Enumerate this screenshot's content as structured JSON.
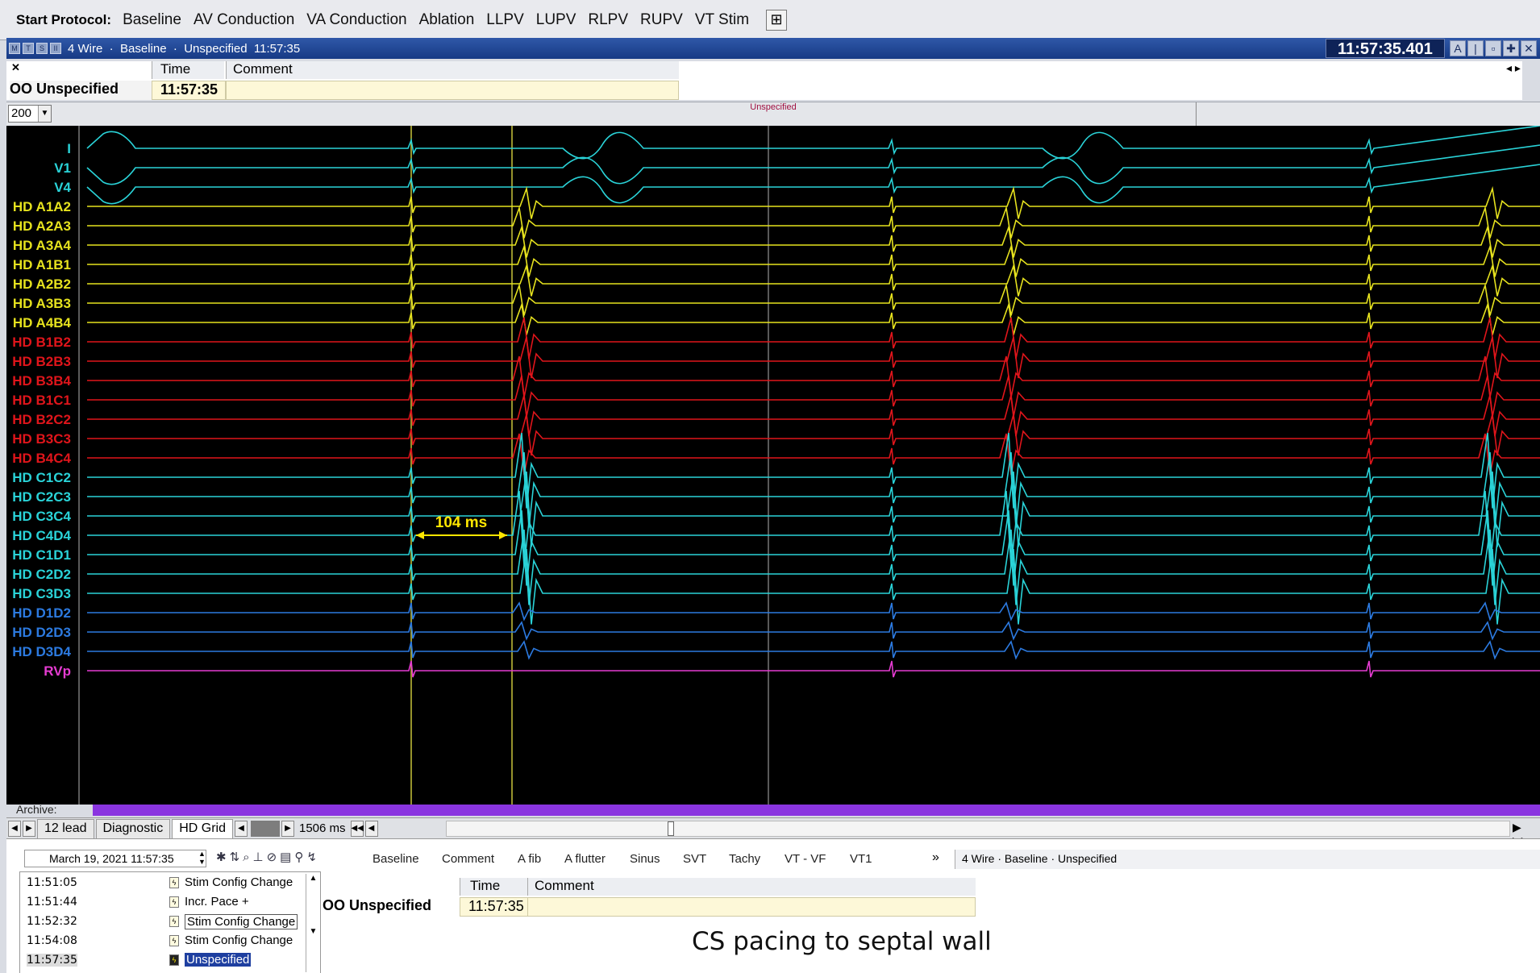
{
  "protocol_bar": {
    "label": "Start Protocol:",
    "buttons": [
      "Baseline",
      "AV Conduction",
      "VA Conduction",
      "Ablation",
      "LLPV",
      "LUPV",
      "RLPV",
      "RUPV",
      "VT Stim"
    ]
  },
  "window": {
    "title": "4 Wire  ·  Baseline  ·  Unspecified  11:57:35",
    "clock": "11:57:35.401",
    "small_buttons": [
      "M",
      "T",
      "S",
      "II"
    ]
  },
  "header_table": {
    "col_time": "Time",
    "col_comment": "Comment",
    "row_name": "OO Unspecified",
    "row_time": "11:57:35"
  },
  "sweep": {
    "value": "200",
    "event_marker": "Unspecified"
  },
  "channels": [
    {
      "label": "I",
      "color": "#2ad3d8"
    },
    {
      "label": "V1",
      "color": "#2ad3d8"
    },
    {
      "label": "V4",
      "color": "#2ad3d8"
    },
    {
      "label": "HD A1A2",
      "color": "#e6e21e"
    },
    {
      "label": "HD A2A3",
      "color": "#e6e21e"
    },
    {
      "label": "HD A3A4",
      "color": "#e6e21e"
    },
    {
      "label": "HD A1B1",
      "color": "#e6e21e"
    },
    {
      "label": "HD A2B2",
      "color": "#e6e21e"
    },
    {
      "label": "HD A3B3",
      "color": "#e6e21e"
    },
    {
      "label": "HD A4B4",
      "color": "#e6e21e"
    },
    {
      "label": "HD B1B2",
      "color": "#e0151b"
    },
    {
      "label": "HD B2B3",
      "color": "#e0151b"
    },
    {
      "label": "HD B3B4",
      "color": "#e0151b"
    },
    {
      "label": "HD B1C1",
      "color": "#e0151b"
    },
    {
      "label": "HD B2C2",
      "color": "#e0151b"
    },
    {
      "label": "HD B3C3",
      "color": "#e0151b"
    },
    {
      "label": "HD B4C4",
      "color": "#e0151b"
    },
    {
      "label": "HD C1C2",
      "color": "#2ad3d8"
    },
    {
      "label": "HD C2C3",
      "color": "#2ad3d8"
    },
    {
      "label": "HD C3C4",
      "color": "#2ad3d8"
    },
    {
      "label": "HD C4D4",
      "color": "#2ad3d8"
    },
    {
      "label": "HD C1D1",
      "color": "#2ad3d8"
    },
    {
      "label": "HD C2D2",
      "color": "#2ad3d8"
    },
    {
      "label": "HD C3D3",
      "color": "#2ad3d8"
    },
    {
      "label": "HD D1D2",
      "color": "#2c7ae0"
    },
    {
      "label": "HD D2D3",
      "color": "#2c7ae0"
    },
    {
      "label": "HD D3D4",
      "color": "#2c7ae0"
    },
    {
      "label": "RVp",
      "color": "#e63cd2"
    }
  ],
  "measurement": "104 ms",
  "archive_label": "Archive:",
  "tabs": [
    "12 lead",
    "Diagnostic",
    "HD Grid"
  ],
  "active_tab": "HD Grid",
  "scroll_ms": "1506 ms",
  "bottom": {
    "date": "March 19, 2021  11:57:35",
    "macros": [
      "Baseline",
      "Comment",
      "A fib",
      "A flutter",
      "Sinus",
      "SVT",
      "Tachy",
      "VT - VF",
      "VT1"
    ],
    "more": "»",
    "breadcrumb": "4 Wire  ·  Baseline  ·  Unspecified",
    "events": [
      {
        "time": "11:51:05",
        "label": "Stim Config Change"
      },
      {
        "time": "11:51:44",
        "label": "Incr. Pace +"
      },
      {
        "time": "11:52:32",
        "label": "Stim Config Change"
      },
      {
        "time": "11:54:08",
        "label": "Stim Config Change"
      },
      {
        "time": "11:57:35",
        "label": "Unspecified"
      }
    ],
    "mini_col_time": "Time",
    "mini_col_comment": "Comment",
    "mini_row_name": "OO Unspecified",
    "mini_row_time": "11:57:35"
  },
  "caption": "CS pacing to septal wall"
}
